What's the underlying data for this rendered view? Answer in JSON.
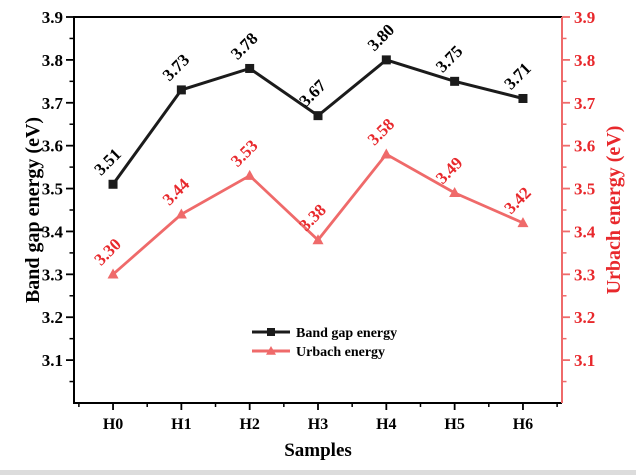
{
  "chart_data": {
    "type": "line",
    "title": "",
    "xlabel": "Samples",
    "ylabel_left": "Band gap energy (eV)",
    "ylabel_right": "Urbach energy (eV)",
    "categories": [
      "H0",
      "H1",
      "H2",
      "H3",
      "H4",
      "H5",
      "H6"
    ],
    "series": [
      {
        "name": "Band gap energy",
        "axis": "left",
        "marker": "square",
        "color": "#1b1b1b",
        "label_color": "#000000",
        "values": [
          3.51,
          3.73,
          3.78,
          3.67,
          3.8,
          3.75,
          3.71
        ]
      },
      {
        "name": "Urbach energy",
        "axis": "right",
        "marker": "triangle",
        "color": "#ef6a6a",
        "label_color": "#e8282c",
        "values": [
          3.3,
          3.44,
          3.53,
          3.38,
          3.58,
          3.49,
          3.42
        ]
      }
    ],
    "ylim": [
      3.0,
      3.9
    ],
    "yticks": [
      3.1,
      3.2,
      3.3,
      3.4,
      3.5,
      3.6,
      3.7,
      3.8,
      3.9
    ],
    "minor_tick_step": 0.05,
    "value_label_decimals": 2,
    "grid": false,
    "legend": {
      "position": "inside-bottom-center",
      "entries": [
        {
          "label": "Band gap energy",
          "marker": "square",
          "color": "#1b1b1b"
        },
        {
          "label": "Urbach energy",
          "marker": "triangle",
          "color": "#ef6a6a"
        }
      ]
    },
    "axes": {
      "left_color": "#000000",
      "bottom_color": "#000000",
      "right_color": "#ef6a6a",
      "right_text_color": "#e8282c"
    }
  }
}
